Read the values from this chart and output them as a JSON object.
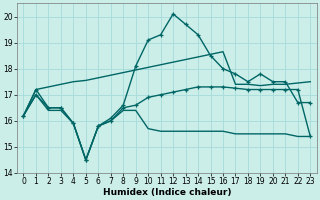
{
  "title": "",
  "xlabel": "Humidex (Indice chaleur)",
  "background_color": "#cceee8",
  "grid_color": "#aadddd",
  "line_color": "#006666",
  "xlim": [
    -0.5,
    23.5
  ],
  "ylim": [
    14,
    20.5
  ],
  "xticks": [
    0,
    1,
    2,
    3,
    4,
    5,
    6,
    7,
    8,
    9,
    10,
    11,
    12,
    13,
    14,
    15,
    16,
    17,
    18,
    19,
    20,
    21,
    22,
    23
  ],
  "yticks": [
    14,
    15,
    16,
    17,
    18,
    19,
    20
  ],
  "curve1_x": [
    0,
    1,
    2,
    3,
    4,
    5,
    6,
    7,
    8,
    9,
    10,
    11,
    12,
    13,
    14,
    15,
    16,
    17,
    18,
    19,
    20,
    21,
    22,
    23
  ],
  "curve1_y": [
    16.2,
    17.2,
    17.3,
    17.4,
    17.5,
    17.55,
    17.65,
    17.75,
    17.85,
    17.95,
    18.05,
    18.15,
    18.25,
    18.35,
    18.45,
    18.55,
    18.65,
    17.4,
    17.4,
    17.35,
    17.4,
    17.4,
    17.45,
    17.5
  ],
  "curve2_x": [
    0,
    1,
    2,
    3,
    4,
    5,
    6,
    7,
    8,
    9,
    10,
    11,
    12,
    13,
    14,
    15,
    16,
    17,
    18,
    19,
    20,
    21,
    22,
    23
  ],
  "curve2_y": [
    16.2,
    17.2,
    16.5,
    16.5,
    15.9,
    14.5,
    15.8,
    16.1,
    16.6,
    18.1,
    19.1,
    19.3,
    20.1,
    19.7,
    19.3,
    18.5,
    18.0,
    17.8,
    17.5,
    17.8,
    17.5,
    17.5,
    16.7,
    16.7
  ],
  "curve3_x": [
    0,
    1,
    2,
    3,
    4,
    5,
    6,
    7,
    8,
    9,
    10,
    11,
    12,
    13,
    14,
    15,
    16,
    17,
    18,
    19,
    20,
    21,
    22,
    23
  ],
  "curve3_y": [
    16.2,
    17.0,
    16.5,
    16.5,
    15.9,
    14.5,
    15.8,
    16.0,
    16.5,
    16.6,
    16.9,
    17.0,
    17.1,
    17.2,
    17.3,
    17.3,
    17.3,
    17.25,
    17.2,
    17.2,
    17.2,
    17.2,
    17.2,
    15.4
  ],
  "curve4_x": [
    0,
    1,
    2,
    3,
    4,
    5,
    6,
    7,
    8,
    9,
    10,
    11,
    12,
    13,
    14,
    15,
    16,
    17,
    18,
    19,
    20,
    21,
    22,
    23
  ],
  "curve4_y": [
    16.2,
    17.0,
    16.4,
    16.4,
    15.9,
    14.5,
    15.8,
    16.0,
    16.4,
    16.4,
    15.7,
    15.6,
    15.6,
    15.6,
    15.6,
    15.6,
    15.6,
    15.5,
    15.5,
    15.5,
    15.5,
    15.5,
    15.4,
    15.4
  ]
}
